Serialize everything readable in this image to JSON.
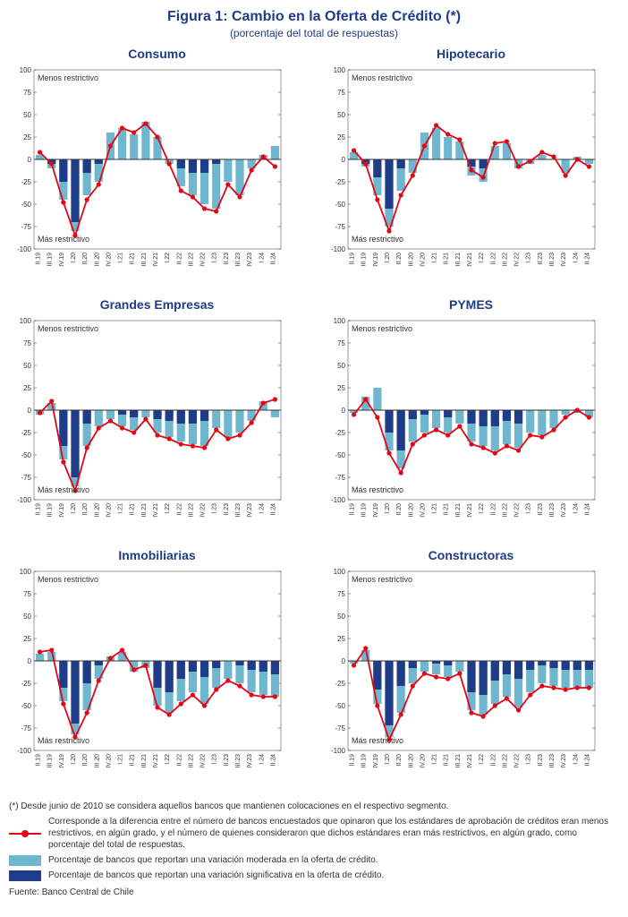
{
  "title": "Figura 1: Cambio en la Oferta de Crédito (*)",
  "subtitle": "(porcentaje del total de respuestas)",
  "colors": {
    "light_bar": "#6fb7cf",
    "dark_bar": "#1f3c88",
    "line": "#e30613",
    "axis": "#333333",
    "bg": "#ffffff"
  },
  "ylim": [
    -100,
    100
  ],
  "ytick_step": 25,
  "categories": [
    "II.19",
    "III.19",
    "IV.19",
    "I.20",
    "II.20",
    "III.20",
    "IV.20",
    "I.21",
    "II.21",
    "III.21",
    "IV.21",
    "I.22",
    "II.22",
    "III.22",
    "IV.22",
    "I.23",
    "II.23",
    "III.23",
    "IV.23",
    "I.24",
    "II.24"
  ],
  "anno_top": "Menos restrictivo",
  "anno_bot": "Más restrictivo",
  "panels": [
    {
      "title": "Consumo",
      "light": [
        5,
        -10,
        -45,
        -80,
        -40,
        -25,
        30,
        35,
        28,
        42,
        25,
        -5,
        -30,
        -40,
        -50,
        -55,
        -25,
        -40,
        -10,
        5,
        15
      ],
      "dark": [
        0,
        -5,
        -25,
        -70,
        -15,
        -5,
        0,
        0,
        0,
        0,
        0,
        0,
        -10,
        -15,
        -15,
        -5,
        0,
        0,
        0,
        0,
        0
      ],
      "line": [
        8,
        -5,
        -48,
        -85,
        -45,
        -28,
        15,
        35,
        30,
        40,
        25,
        -5,
        -35,
        -42,
        -55,
        -58,
        -28,
        -42,
        -12,
        3,
        -8
      ]
    },
    {
      "title": "Hipotecario",
      "light": [
        8,
        -8,
        -40,
        -75,
        -35,
        -15,
        30,
        35,
        25,
        20,
        -18,
        -25,
        15,
        18,
        -10,
        -5,
        5,
        0,
        -15,
        3,
        -5
      ],
      "dark": [
        0,
        -5,
        -20,
        -55,
        -10,
        0,
        0,
        0,
        0,
        0,
        -8,
        -10,
        0,
        0,
        0,
        0,
        0,
        0,
        0,
        0,
        0
      ],
      "line": [
        10,
        -5,
        -45,
        -80,
        -40,
        -18,
        15,
        38,
        28,
        22,
        -12,
        -20,
        18,
        20,
        -8,
        -2,
        8,
        3,
        -18,
        0,
        -8
      ]
    },
    {
      "title": "Grandes Empresas",
      "light": [
        -5,
        8,
        -55,
        -85,
        -40,
        -18,
        -10,
        -18,
        -22,
        -8,
        -25,
        -30,
        -35,
        -38,
        -40,
        -20,
        -30,
        -25,
        -12,
        10,
        -8
      ],
      "dark": [
        0,
        0,
        -40,
        -75,
        -15,
        0,
        0,
        -5,
        -8,
        0,
        -10,
        -12,
        -15,
        -15,
        -12,
        0,
        0,
        0,
        0,
        0,
        0
      ],
      "line": [
        -3,
        10,
        -58,
        -90,
        -42,
        -20,
        -12,
        -20,
        -25,
        -10,
        -28,
        -32,
        -38,
        -40,
        -42,
        -22,
        -32,
        -28,
        -14,
        8,
        12
      ]
    },
    {
      "title": "PYMES",
      "light": [
        -3,
        15,
        25,
        -45,
        -65,
        -35,
        -25,
        -20,
        -25,
        -15,
        -35,
        -40,
        -45,
        -38,
        -42,
        -25,
        -28,
        -20,
        -5,
        -3,
        -8
      ],
      "dark": [
        0,
        0,
        0,
        -25,
        -45,
        -10,
        -5,
        0,
        -8,
        0,
        -15,
        -18,
        -18,
        -12,
        -15,
        0,
        0,
        0,
        0,
        0,
        0
      ],
      "line": [
        -5,
        12,
        -8,
        -48,
        -70,
        -38,
        -28,
        -22,
        -28,
        -18,
        -38,
        -42,
        -48,
        -40,
        -45,
        -28,
        -30,
        -22,
        -8,
        0,
        -8
      ]
    },
    {
      "title": "Inmobiliarias",
      "light": [
        8,
        10,
        -45,
        -82,
        -55,
        -20,
        5,
        10,
        -12,
        -8,
        -50,
        -58,
        -45,
        -35,
        -48,
        -30,
        -20,
        -25,
        -35,
        -38,
        -40
      ],
      "dark": [
        0,
        0,
        -30,
        -70,
        -25,
        -5,
        0,
        0,
        0,
        0,
        -30,
        -35,
        -20,
        -12,
        -18,
        -8,
        0,
        -5,
        -10,
        -12,
        -15
      ],
      "line": [
        10,
        12,
        -48,
        -85,
        -58,
        -22,
        3,
        12,
        -10,
        -5,
        -52,
        -60,
        -48,
        -38,
        -50,
        -32,
        -22,
        -28,
        -38,
        -40,
        -40
      ]
    },
    {
      "title": "Constructoras",
      "light": [
        -3,
        12,
        -48,
        -85,
        -58,
        -25,
        -12,
        -15,
        -18,
        -12,
        -55,
        -60,
        -48,
        -40,
        -52,
        -35,
        -25,
        -28,
        -30,
        -30,
        -30
      ],
      "dark": [
        0,
        0,
        -32,
        -72,
        -28,
        -8,
        0,
        -3,
        -5,
        0,
        -35,
        -38,
        -22,
        -15,
        -20,
        -10,
        -5,
        -8,
        -10,
        -10,
        -10
      ],
      "line": [
        -5,
        14,
        -50,
        -88,
        -60,
        -28,
        -14,
        -18,
        -20,
        -14,
        -58,
        -62,
        -50,
        -42,
        -55,
        -38,
        -28,
        -30,
        -32,
        -30,
        -30
      ]
    }
  ],
  "footer_note": "(*) Desde junio de 2010 se considera aquellos bancos que mantienen colocaciones en el respectivo segmento.",
  "legend_line": "Corresponde a la diferencia entre el número de bancos encuestados que opinaron que los estándares de aprobación de créditos eran menos restrictivos, en algún grado, y el número de quienes consideraron que dichos estándares eran más restrictivos, en algún grado, como porcentaje del total de respuestas.",
  "legend_light": "Porcentaje de bancos que reportan una variación moderada en la oferta de crédito.",
  "legend_dark": "Porcentaje de bancos que reportan una variación significativa en la oferta de crédito.",
  "source": "Fuente: Banco Central de Chile"
}
